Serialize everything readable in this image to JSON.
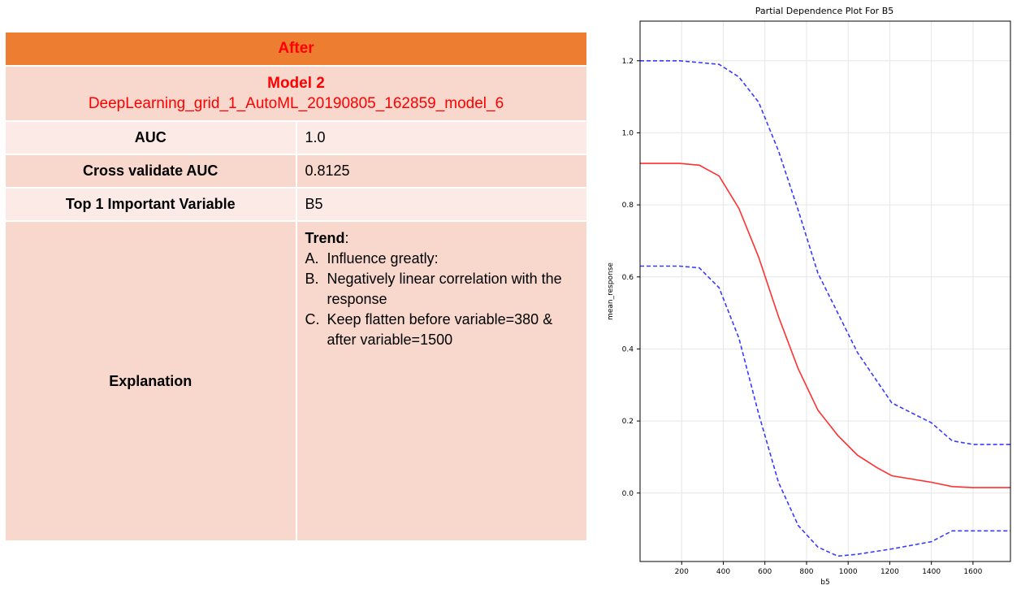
{
  "table": {
    "header": "After",
    "model_title": "Model 2",
    "model_name": "DeepLearning_grid_1_AutoML_20190805_162859_model_6",
    "rows": [
      {
        "label": "AUC",
        "value": "1.0"
      },
      {
        "label": "Cross validate AUC",
        "value": "0.8125"
      },
      {
        "label": "Top 1 Important Variable",
        "value": "B5"
      }
    ],
    "explanation": {
      "label": "Explanation",
      "trend_title": "Trend",
      "trend_colon": ":",
      "items": [
        {
          "letter": "A.",
          "text": "Influence greatly:"
        },
        {
          "letter": "B.",
          "text": "Negatively linear correlation with the response"
        },
        {
          "letter": "C.",
          "text": "Keep flatten before variable=380 & after variable=1500"
        }
      ]
    }
  },
  "chart_data": {
    "type": "line",
    "title": "Partial Dependence Plot For B5",
    "xlabel": "b5",
    "ylabel": "mean_response",
    "xlim": [
      0,
      1780
    ],
    "ylim": [
      -0.19,
      1.31
    ],
    "xticks": [
      200,
      400,
      600,
      800,
      1000,
      1200,
      1400,
      1600
    ],
    "yticks": [
      0.0,
      0.2,
      0.4,
      0.6,
      0.8,
      1.0,
      1.2
    ],
    "grid": true,
    "colors": {
      "mean": "#ff3030",
      "bound": "#3a3aff",
      "axis": "#000000",
      "grid": "#e6e6e6"
    },
    "series": [
      {
        "role": "upper",
        "style": "dashed",
        "x": [
          0,
          190,
          285,
          380,
          475,
          570,
          665,
          760,
          855,
          950,
          1045,
          1210,
          1400,
          1500,
          1600,
          1780
        ],
        "y": [
          1.2,
          1.2,
          1.195,
          1.19,
          1.155,
          1.085,
          0.95,
          0.785,
          0.61,
          0.5,
          0.39,
          0.25,
          0.195,
          0.145,
          0.135,
          0.135
        ]
      },
      {
        "role": "mean",
        "style": "solid",
        "x": [
          0,
          190,
          285,
          380,
          475,
          570,
          665,
          760,
          855,
          950,
          1045,
          1140,
          1210,
          1400,
          1500,
          1600,
          1780
        ],
        "y": [
          0.915,
          0.915,
          0.91,
          0.88,
          0.79,
          0.655,
          0.49,
          0.345,
          0.23,
          0.16,
          0.105,
          0.07,
          0.048,
          0.03,
          0.018,
          0.015,
          0.015
        ]
      },
      {
        "role": "lower",
        "style": "dashed",
        "x": [
          0,
          190,
          285,
          380,
          475,
          570,
          665,
          760,
          855,
          950,
          1045,
          1210,
          1400,
          1500,
          1600,
          1780
        ],
        "y": [
          0.63,
          0.63,
          0.625,
          0.57,
          0.43,
          0.22,
          0.03,
          -0.09,
          -0.15,
          -0.175,
          -0.17,
          -0.155,
          -0.135,
          -0.105,
          -0.105,
          -0.105
        ]
      }
    ]
  }
}
